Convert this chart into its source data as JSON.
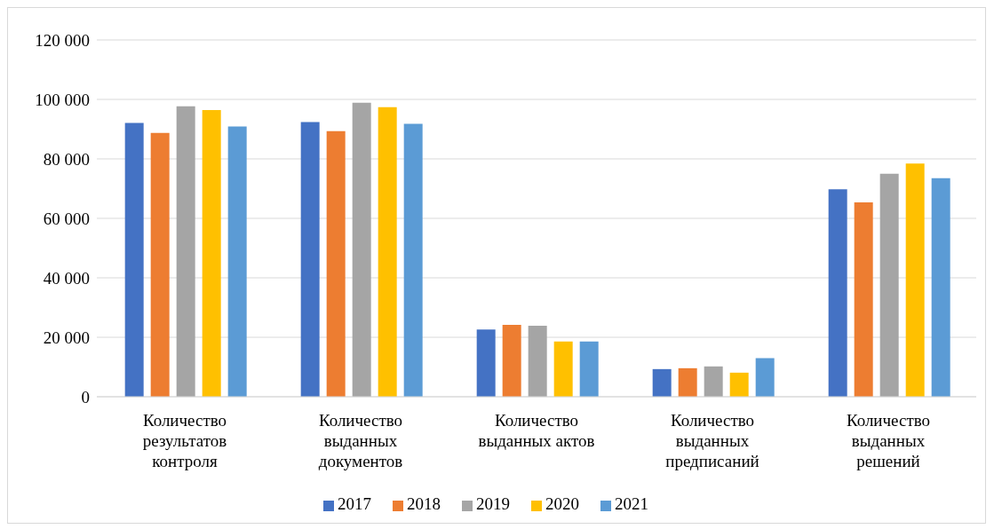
{
  "chart_data": {
    "type": "bar",
    "categories": [
      "Количество результатов контроля",
      "Количество выданных документов",
      "Количество выданных актов",
      "Количество выданных предписаний",
      "Количество выданных решений"
    ],
    "series": [
      {
        "name": "2017",
        "color": "#4472c4",
        "values": [
          92100,
          92400,
          22600,
          9300,
          69800
        ]
      },
      {
        "name": "2018",
        "color": "#ed7d31",
        "values": [
          88700,
          89300,
          24200,
          9600,
          65400
        ]
      },
      {
        "name": "2019",
        "color": "#a5a5a5",
        "values": [
          97700,
          98900,
          23900,
          10200,
          75000
        ]
      },
      {
        "name": "2020",
        "color": "#ffc000",
        "values": [
          96400,
          97400,
          18600,
          8100,
          78400
        ]
      },
      {
        "name": "2021",
        "color": "#5b9bd5",
        "values": [
          90900,
          91800,
          18600,
          13000,
          73500
        ]
      }
    ],
    "ylim": [
      0,
      120000
    ],
    "yticks": [
      0,
      {
        "value": 20000,
        "label": "20 000"
      },
      {
        "value": 40000,
        "label": "40 000"
      },
      {
        "value": 60000,
        "label": "60 000"
      },
      {
        "value": 80000,
        "label": "80 000"
      },
      {
        "value": 100000,
        "label": "100 000"
      },
      {
        "value": 120000,
        "label": "120 000"
      }
    ],
    "grid": "y",
    "legend": "bottom"
  }
}
